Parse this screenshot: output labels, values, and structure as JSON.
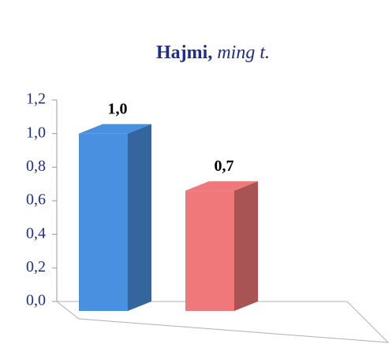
{
  "chart_data": {
    "type": "bar3d",
    "title": "Hajmi,",
    "title_unit": "ming t.",
    "categories": [
      null,
      null
    ],
    "values": [
      1.0,
      0.66
    ],
    "value_labels": [
      "1,0",
      "0,7"
    ],
    "colors": [
      "#4a90e0",
      "#f0787a"
    ],
    "ylim": [
      0,
      1.2
    ],
    "yticks": [
      {
        "value": 0,
        "label": "0,0"
      },
      {
        "value": 0.2,
        "label": "0,2"
      },
      {
        "value": 0.4,
        "label": "0,4"
      },
      {
        "value": 0.6,
        "label": "0,6"
      },
      {
        "value": 0.8,
        "label": "0,8"
      },
      {
        "value": 1.0,
        "label": "1,0"
      },
      {
        "value": 1.2,
        "label": "1,2"
      }
    ],
    "grid": false
  }
}
